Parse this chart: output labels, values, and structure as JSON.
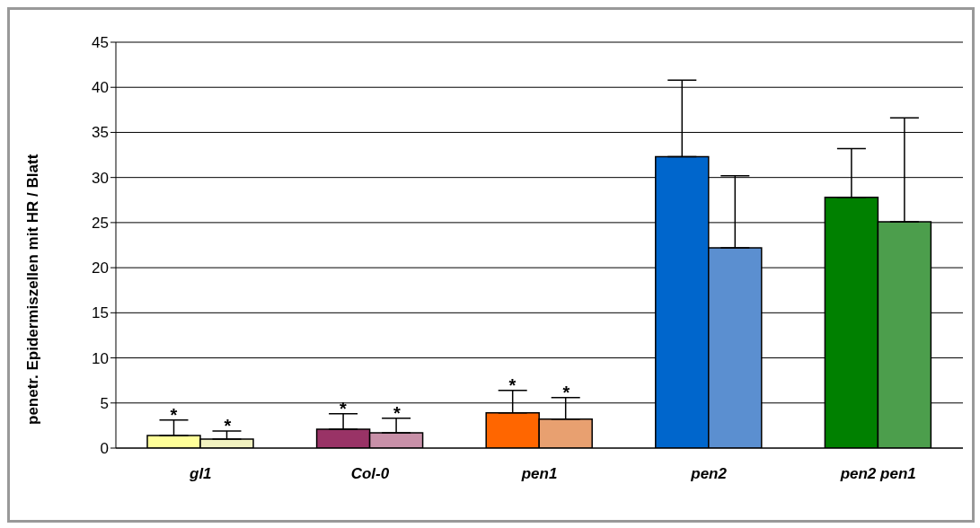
{
  "chart_data": {
    "type": "bar",
    "ylabel": "penetr. Epidermiszellen mit HR / Blatt",
    "categories": [
      "gl1",
      "Col-0",
      "pen1",
      "pen2",
      "pen2 pen1"
    ],
    "series": [
      {
        "colors": [
          "#ffff99",
          "#993366",
          "#ff6600",
          "#0066cc",
          "#008000"
        ],
        "values": [
          1.4,
          2.1,
          3.9,
          32.3,
          27.8
        ],
        "errors": [
          [
            1.4,
            3.1
          ],
          [
            2.1,
            3.8
          ],
          [
            3.9,
            6.4
          ],
          [
            32.3,
            40.8
          ],
          [
            27.8,
            33.2
          ]
        ]
      },
      {
        "colors": [
          "#f2f2c0",
          "#c890a8",
          "#e8a070",
          "#5b8fd0",
          "#4c9e4c"
        ],
        "values": [
          1.0,
          1.7,
          3.2,
          22.2,
          25.1
        ],
        "errors": [
          [
            1.0,
            1.9
          ],
          [
            1.7,
            3.3
          ],
          [
            3.2,
            5.6
          ],
          [
            22.2,
            30.2
          ],
          [
            25.1,
            36.6
          ]
        ]
      }
    ],
    "ylim": [
      0,
      45
    ],
    "yticks": [
      0,
      5,
      10,
      15,
      20,
      25,
      30,
      35,
      40,
      45
    ],
    "grid": "y",
    "legend": false,
    "annotations": [
      {
        "text": "*",
        "x": "gl1",
        "y": 1.4
      },
      {
        "text": "*",
        "x": "gl1",
        "y": 1.0
      },
      {
        "text": "*",
        "x": "Col-0",
        "y": 2.1
      },
      {
        "text": "*",
        "x": "Col-0",
        "y": 1.7
      },
      {
        "text": "*",
        "x": "pen1",
        "y": 3.9
      },
      {
        "text": "*",
        "x": "pen1",
        "y": 3.2
      }
    ]
  }
}
